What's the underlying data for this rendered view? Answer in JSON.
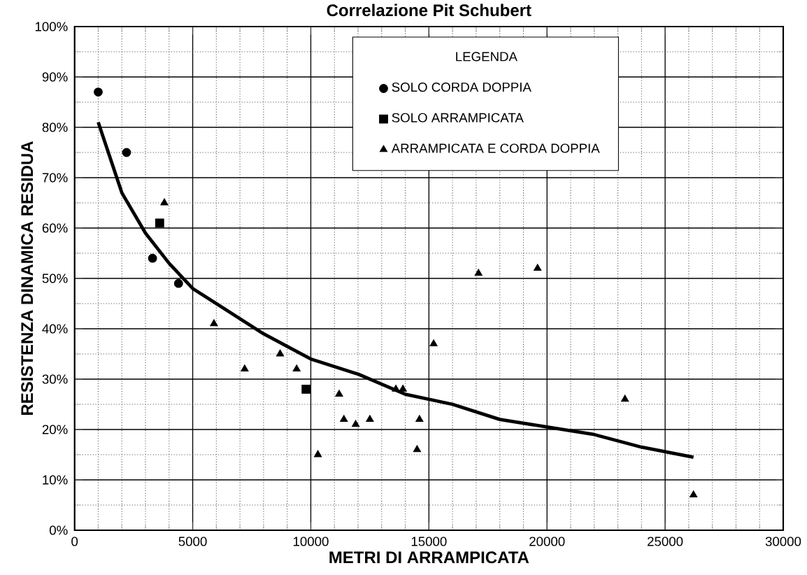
{
  "chart_data": {
    "type": "scatter",
    "title": "Correlazione Pit Schubert",
    "xlabel": "METRI DI ARRAMPICATA",
    "ylabel": "RESISTENZA DINAMICA RESIDUA",
    "legend_title": "LEGENDA",
    "legend": "top",
    "grid": true,
    "xlim": [
      0,
      30000
    ],
    "xticks": [
      0,
      5000,
      10000,
      15000,
      20000,
      25000,
      30000
    ],
    "ylim": [
      0,
      100
    ],
    "yticks": [
      {
        "value": 0,
        "label": "0%"
      },
      {
        "value": 10,
        "label": "10%"
      },
      {
        "value": 20,
        "label": "20%"
      },
      {
        "value": 30,
        "label": "30%"
      },
      {
        "value": 40,
        "label": "40%"
      },
      {
        "value": 50,
        "label": "50%"
      },
      {
        "value": 60,
        "label": "60%"
      },
      {
        "value": 70,
        "label": "70%"
      },
      {
        "value": 80,
        "label": "80%"
      },
      {
        "value": 90,
        "label": "90%"
      },
      {
        "value": 100,
        "label": "100%"
      }
    ],
    "series": [
      {
        "name": "SOLO CORDA DOPPIA",
        "color": "#000000",
        "marker": "circle",
        "x": [
          1000,
          2200,
          3300,
          4400
        ],
        "values": [
          87,
          75,
          54,
          49
        ]
      },
      {
        "name": "SOLO ARRAMPICATA",
        "color": "#000000",
        "marker": "square",
        "x": [
          3600,
          9800
        ],
        "values": [
          61,
          28
        ]
      },
      {
        "name": "ARRAMPICATA E CORDA DOPPIA",
        "color": "#000000",
        "marker": "triangle",
        "x": [
          3800,
          5900,
          7200,
          8700,
          9400,
          10300,
          11200,
          11400,
          11900,
          12500,
          13600,
          13900,
          14500,
          14600,
          15200,
          17100,
          19600,
          23300,
          26200
        ],
        "values": [
          65,
          41,
          32,
          35,
          32,
          15,
          27,
          22,
          21,
          22,
          28,
          28,
          16,
          22,
          37,
          51,
          52,
          26,
          7
        ]
      },
      {
        "type": "line",
        "color": "#000000",
        "marker": "none",
        "x": [
          1000,
          2000,
          3000,
          4000,
          5000,
          6000,
          8000,
          10000,
          12000,
          14000,
          16000,
          18000,
          20000,
          22000,
          24000,
          26200
        ],
        "values": [
          81,
          67,
          59,
          53,
          48,
          45,
          39,
          34,
          31,
          27,
          25,
          22,
          20.5,
          19,
          16.5,
          14.5
        ]
      }
    ]
  }
}
